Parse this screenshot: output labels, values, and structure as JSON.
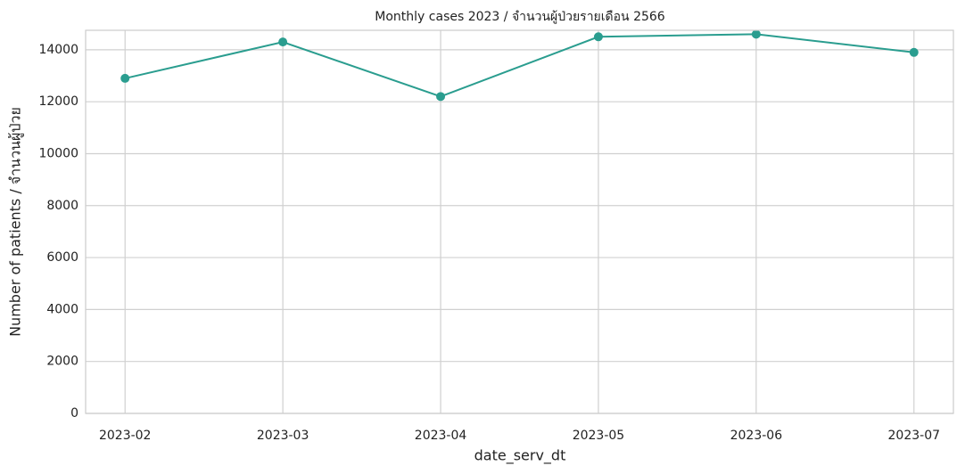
{
  "chart_data": {
    "type": "line",
    "title": "Monthly cases 2023 / จำนวนผู้ป่วยรายเดือน 2566",
    "x_label": "date_serv_dt",
    "y_label": "Number of patients / จำนวนผู้ป่วย",
    "categories": [
      "2023-02",
      "2023-03",
      "2023-04",
      "2023-05",
      "2023-06",
      "2023-07"
    ],
    "values": [
      12900,
      14300,
      12200,
      14500,
      14600,
      13900
    ],
    "color": "#2a9d8f",
    "ylim": [
      0,
      14750
    ],
    "yticks": [
      0,
      2000,
      4000,
      6000,
      8000,
      10000,
      12000,
      14000
    ],
    "grid": true,
    "markers": true
  }
}
